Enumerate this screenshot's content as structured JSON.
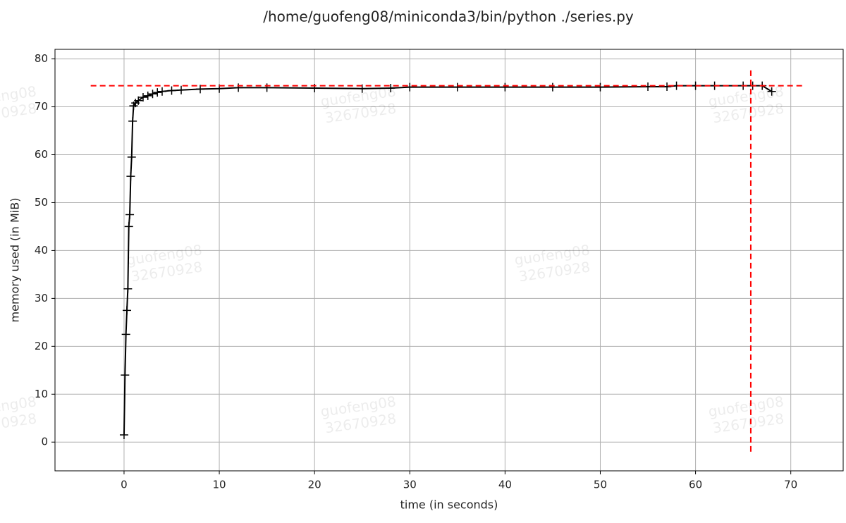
{
  "chart_data": {
    "type": "line",
    "title": "/home/guofeng08/miniconda3/bin/python ./series.py",
    "x_label": "time (in seconds)",
    "y_label": "memory used (in MiB)",
    "x": [
      0,
      0.1,
      0.2,
      0.3,
      0.4,
      0.5,
      0.6,
      0.7,
      0.8,
      0.9,
      1.0,
      1.2,
      1.5,
      2,
      2.5,
      3,
      3.5,
      4,
      5,
      6,
      8,
      10,
      12,
      15,
      20,
      25,
      28,
      30,
      35,
      40,
      45,
      50,
      55,
      57,
      58,
      60,
      62,
      65,
      66,
      67,
      68
    ],
    "series": [
      {
        "name": "memory",
        "color": "#000000",
        "values": [
          1.5,
          14,
          22.5,
          27.5,
          32,
          45,
          47.5,
          55.5,
          59.5,
          67,
          70.2,
          70.8,
          71.3,
          72,
          72.3,
          72.7,
          73,
          73.2,
          73.4,
          73.5,
          73.7,
          73.8,
          74,
          74,
          73.9,
          73.8,
          73.9,
          74.1,
          74.1,
          74.1,
          74.1,
          74.1,
          74.2,
          74.2,
          74.4,
          74.4,
          74.4,
          74.4,
          74.4,
          74.4,
          73.2
        ]
      }
    ],
    "reference_lines": [
      {
        "axis": "y",
        "value": 74.4,
        "from": -3.5,
        "to": 71.5,
        "color": "#ff0000"
      },
      {
        "axis": "x",
        "value": 65.8,
        "from": -2,
        "to": 78,
        "color": "#ff0000"
      }
    ],
    "xlim": [
      -7.25,
      75.5
    ],
    "ylim": [
      -6,
      82
    ],
    "xticks": [
      0,
      10,
      20,
      30,
      40,
      50,
      60,
      70
    ],
    "yticks": [
      0,
      10,
      20,
      30,
      40,
      50,
      60,
      70,
      80
    ],
    "grid": true,
    "watermark": [
      "guofeng08",
      "32670928"
    ]
  }
}
